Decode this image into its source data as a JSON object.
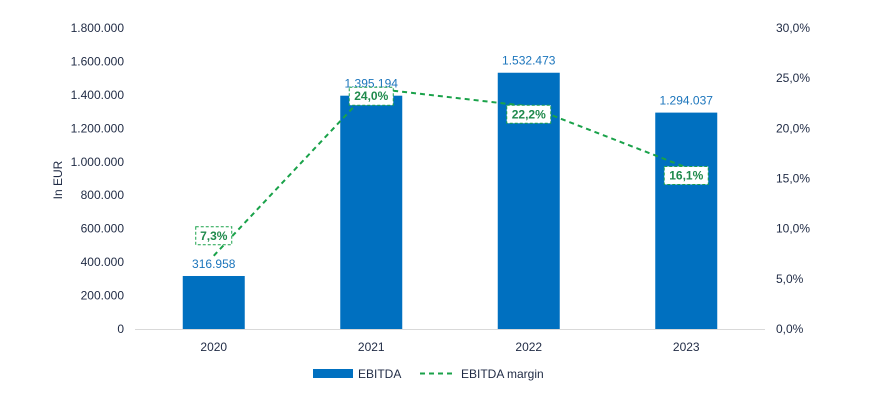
{
  "chart_data": {
    "type": "bar",
    "categories": [
      "2020",
      "2021",
      "2022",
      "2023"
    ],
    "series": [
      {
        "name": "EBITDA",
        "type": "bar",
        "axis": "left",
        "values": [
          316958,
          1395194,
          1532473,
          1294037
        ],
        "labels": [
          "316.958",
          "1.395.194",
          "1.532.473",
          "1.294.037"
        ],
        "color": "#0070c0"
      },
      {
        "name": "EBITDA margin",
        "type": "line",
        "axis": "right",
        "style": "dashed",
        "values": [
          7.3,
          24.0,
          22.2,
          16.1
        ],
        "labels": [
          "7,3%",
          "24,0%",
          "22,2%",
          "16,1%"
        ],
        "color": "#1aa24a"
      }
    ],
    "ylabel": "In EUR",
    "ylim": [
      0,
      1800000
    ],
    "y_ticks": [
      "0",
      "200.000",
      "400.000",
      "600.000",
      "800.000",
      "1.000.000",
      "1.200.000",
      "1.400.000",
      "1.600.000",
      "1.800.000"
    ],
    "y2lim": [
      0,
      30
    ],
    "y2_ticks": [
      "0,0%",
      "5,0%",
      "10,0%",
      "15,0%",
      "20,0%",
      "25,0%",
      "30,0%"
    ],
    "grid": false,
    "legend_position": "bottom"
  }
}
